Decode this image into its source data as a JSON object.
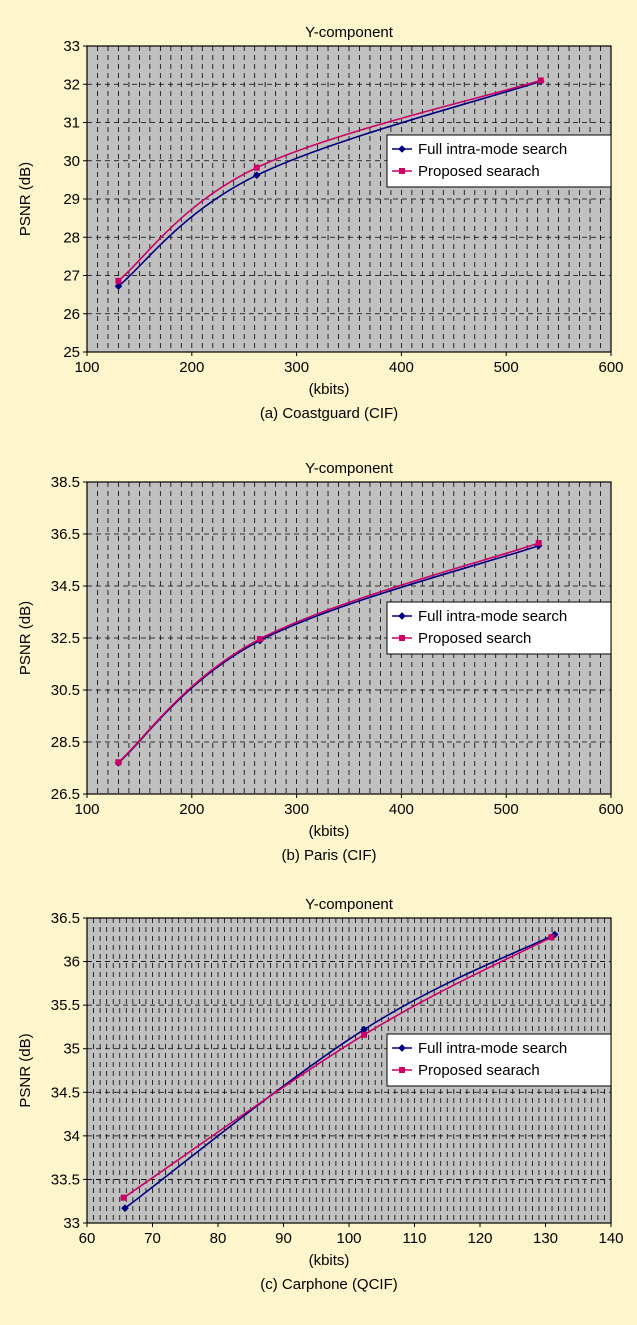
{
  "chart_data": [
    {
      "type": "line",
      "title": "Y-component",
      "xlabel": "(kbits)",
      "ylabel": "PSNR (dB)",
      "caption": "(a) Coastguard (CIF)",
      "xlim": [
        100,
        600
      ],
      "ylim": [
        25,
        33
      ],
      "xticks": [
        "100",
        "200",
        "300",
        "400",
        "500",
        "600"
      ],
      "yticks": [
        "25",
        "26",
        "27",
        "28",
        "29",
        "30",
        "31",
        "32",
        "33"
      ],
      "grid": "dashed",
      "legend_position": "right",
      "series": [
        {
          "name": "Full intra-mode search",
          "color": "#000080",
          "marker": "diamond",
          "x": [
            130,
            262,
            533
          ],
          "y": [
            26.72,
            29.62,
            32.08
          ]
        },
        {
          "name": "Proposed searach",
          "color": "#cc0066",
          "marker": "square",
          "x": [
            130,
            262,
            533
          ],
          "y": [
            26.86,
            29.82,
            32.1
          ]
        }
      ]
    },
    {
      "type": "line",
      "title": "Y-component",
      "xlabel": "(kbits)",
      "ylabel": "PSNR (dB)",
      "caption": "(b) Paris (CIF)",
      "xlim": [
        100,
        600
      ],
      "ylim": [
        26.5,
        38.5
      ],
      "xticks": [
        "100",
        "200",
        "300",
        "400",
        "500",
        "600"
      ],
      "yticks": [
        "26.5",
        "28.5",
        "30.5",
        "32.5",
        "34.5",
        "36.5",
        "38.5"
      ],
      "grid": "dashed",
      "legend_position": "right",
      "series": [
        {
          "name": "Full intra-mode search",
          "color": "#000080",
          "marker": "diamond",
          "x": [
            130,
            265,
            531
          ],
          "y": [
            27.7,
            32.4,
            36.05
          ]
        },
        {
          "name": "Proposed search",
          "color": "#cc0066",
          "marker": "square",
          "x": [
            130,
            265,
            531
          ],
          "y": [
            27.72,
            32.46,
            36.15
          ]
        }
      ]
    },
    {
      "type": "line",
      "title": "Y-component",
      "xlabel": "(kbits)",
      "ylabel": "PSNR (dB)",
      "caption": "(c) Carphone (QCIF)",
      "xlim": [
        60,
        140
      ],
      "ylim": [
        33,
        36.5
      ],
      "xticks": [
        "60",
        "70",
        "80",
        "90",
        "100",
        "110",
        "120",
        "130",
        "140"
      ],
      "yticks": [
        "33",
        "33.5",
        "34",
        "34.5",
        "35",
        "35.5",
        "36",
        "36.5"
      ],
      "grid": "dashed",
      "legend_position": "right",
      "series": [
        {
          "name": "Full intra-mode search",
          "color": "#000080",
          "marker": "diamond",
          "x": [
            65.8,
            102.3,
            131.4
          ],
          "y": [
            33.17,
            35.22,
            36.31
          ]
        },
        {
          "name": "Proposed searach",
          "color": "#cc0066",
          "marker": "square",
          "x": [
            65.6,
            102.3,
            130.9
          ],
          "y": [
            33.29,
            35.16,
            36.28
          ]
        }
      ]
    }
  ]
}
